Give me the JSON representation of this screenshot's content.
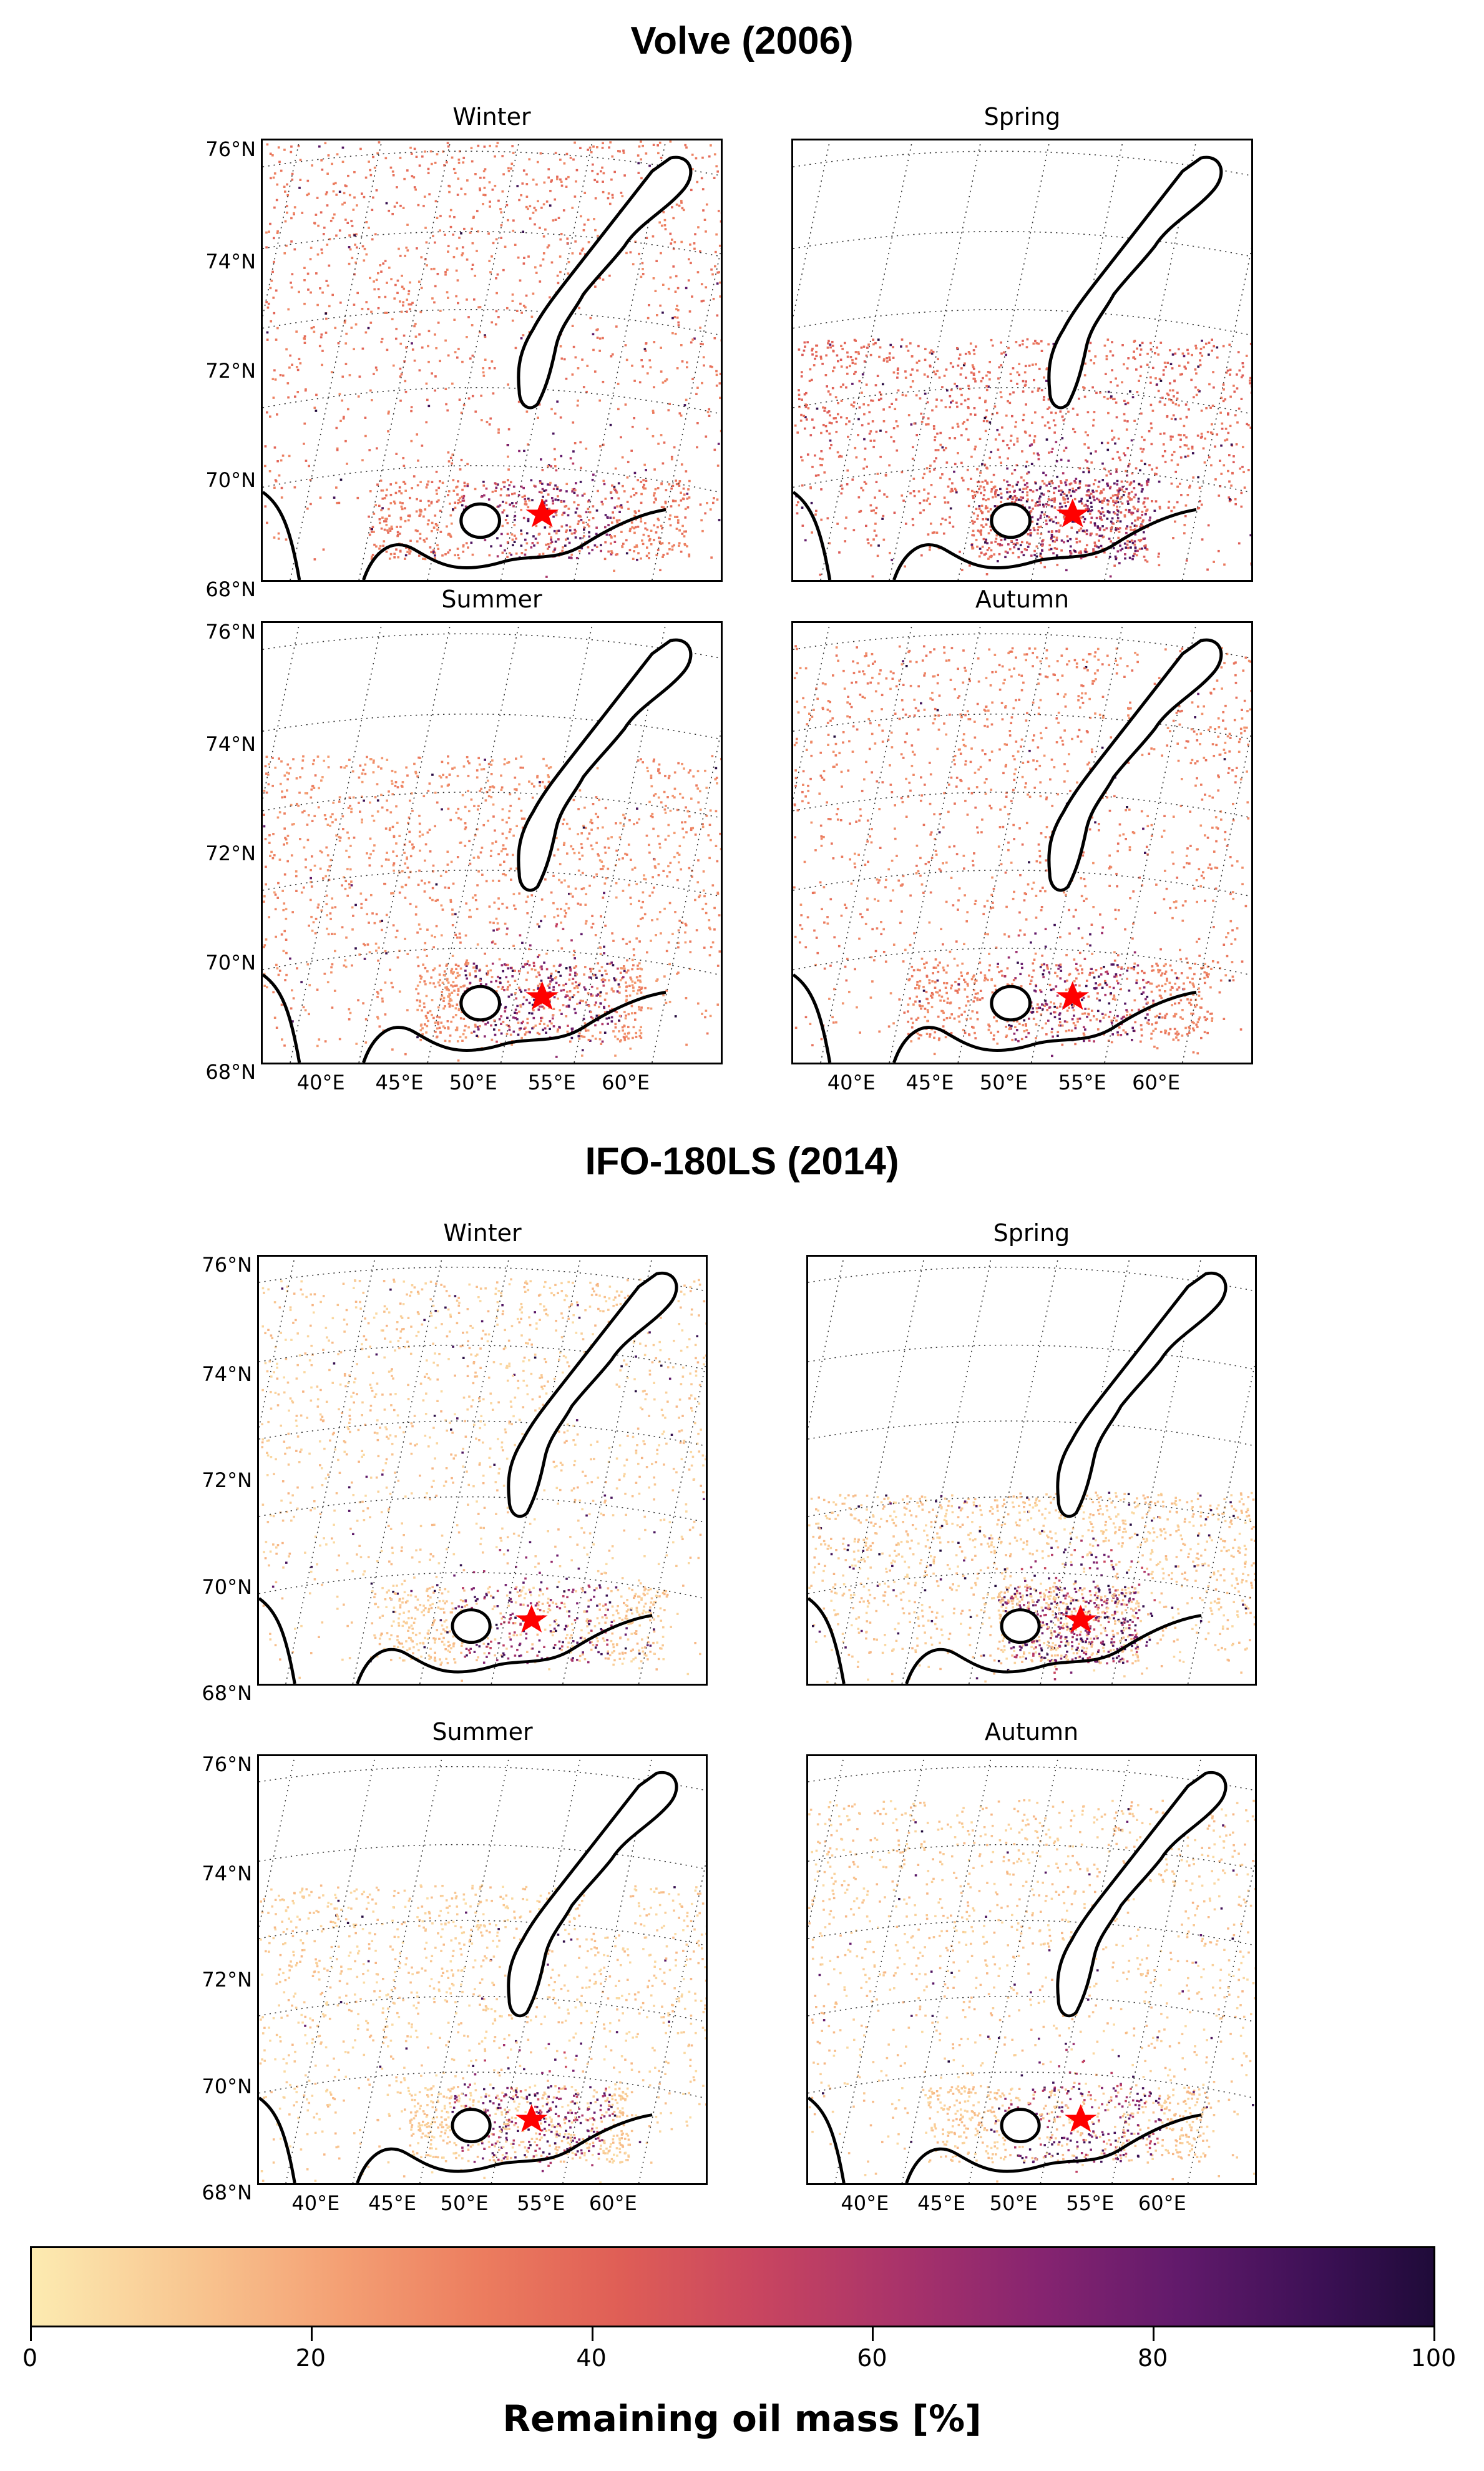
{
  "sections": [
    {
      "title": "Volve (2006)",
      "panels": [
        {
          "title": "Winter",
          "spread": 1.0,
          "dark": 0.12,
          "base": 0.28
        },
        {
          "title": "Spring",
          "spread": 0.55,
          "dark": 0.22,
          "base": 0.32
        },
        {
          "title": "Summer",
          "spread": 0.7,
          "dark": 0.08,
          "base": 0.22
        },
        {
          "title": "Autumn",
          "spread": 0.95,
          "dark": 0.1,
          "base": 0.25
        }
      ]
    },
    {
      "title": "IFO-180LS (2014)",
      "panels": [
        {
          "title": "Winter",
          "spread": 0.95,
          "dark": 0.18,
          "base": 0.05
        },
        {
          "title": "Spring",
          "spread": 0.45,
          "dark": 0.25,
          "base": 0.05
        },
        {
          "title": "Summer",
          "spread": 0.7,
          "dark": 0.08,
          "base": 0.04
        },
        {
          "title": "Autumn",
          "spread": 0.9,
          "dark": 0.12,
          "base": 0.05
        }
      ]
    }
  ],
  "lat_labels": [
    "76°N",
    "74°N",
    "72°N",
    "70°N",
    "68°N"
  ],
  "lon_labels": [
    "40°E",
    "45°E",
    "50°E",
    "55°E",
    "60°E"
  ],
  "colorbar": {
    "label": "Remaining oil mass [%]",
    "min": 0,
    "max": 100,
    "ticks": [
      "0",
      "20",
      "40",
      "60",
      "80",
      "100"
    ],
    "colormap": "magma_r"
  },
  "spill_marker_color": "#ff0000"
}
